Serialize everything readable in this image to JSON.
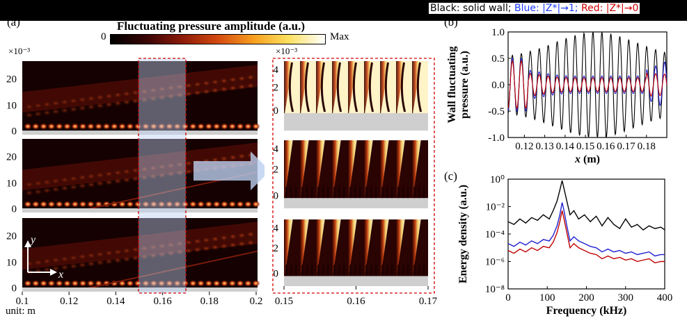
{
  "figure": {
    "panel_a": "(a)",
    "panel_b": "(b)",
    "panel_c": "(c)",
    "colorbar": {
      "title": "Fluctuating pressure amplitude (a.u.)",
      "min_label": "0",
      "max_label": "Max",
      "colors": [
        "#000000",
        "#3a0505",
        "#8b1a0a",
        "#d44a10",
        "#f8a020",
        "#fbe060",
        "#ffffff"
      ]
    },
    "legend_note": {
      "black": "Black: solid wall;",
      "blue": "Blue: |Z*|→1;",
      "red": "Red: |Z*|→0"
    },
    "left_fields": {
      "scale_label": "×10⁻³",
      "y_ticks": [
        "20",
        "10",
        "0"
      ],
      "x_ticks": [
        "0.1",
        "0.12",
        "0.14",
        "0.16",
        "0.18",
        "0.2"
      ],
      "unit": "unit: m",
      "axis_y": "y",
      "axis_x": "x"
    },
    "zoom_fields": {
      "scale_label": "×10⁻³",
      "y_ticks": [
        "4",
        "2",
        "0"
      ],
      "x_ticks": [
        "0.15",
        "0.16",
        "0.17"
      ]
    }
  },
  "chart_data": [
    {
      "type": "line",
      "panel": "(b)",
      "xlabel": "x (m)",
      "ylabel": "Wall fluctuating pressure (a.u.)",
      "xlim": [
        0.112,
        0.19
      ],
      "ylim": [
        -1.0,
        1.0
      ],
      "x_ticks": [
        0.12,
        0.13,
        0.14,
        0.15,
        0.16,
        0.17,
        0.18
      ],
      "y_ticks": [
        1.0,
        0.5,
        0.0,
        -0.5,
        -1.0
      ],
      "x_tick_labels": [
        "0.12",
        "0.13",
        "0.14",
        "0.15",
        "0.16",
        "0.17",
        "0.18"
      ],
      "y_tick_labels": [
        "1.0",
        "0.5",
        "0.0",
        "-0.5",
        "-1.0"
      ],
      "series": [
        {
          "color": "#000000",
          "wavelength": 0.0044,
          "amplitude_peak": 1.0,
          "amplitude_start": 0.5,
          "amplitude_end": 0.75,
          "peak_x": 0.155
        },
        {
          "color": "#2020d0",
          "wavelength": 0.0044,
          "amplitude_peak": 0.28,
          "amplitude_start": 0.5,
          "amplitude_end": 0.45,
          "peak_x": 0.12
        },
        {
          "color": "#c00000",
          "wavelength": 0.0044,
          "amplitude_peak": 0.22,
          "amplitude_start": 0.45,
          "amplitude_end": 0.2,
          "peak_x": 0.12
        }
      ]
    },
    {
      "type": "line",
      "panel": "(c)",
      "xlabel": "Frequency (kHz)",
      "ylabel": "Energy density (a.u.)",
      "xlim": [
        0,
        400
      ],
      "ylim_log10": [
        -8,
        0
      ],
      "x_ticks": [
        0,
        100,
        200,
        300,
        400
      ],
      "x_tick_labels": [
        "0",
        "100",
        "200",
        "300",
        "400"
      ],
      "y_ticks_log10": [
        0,
        -2,
        -4,
        -6,
        -8
      ],
      "y_tick_labels": [
        "10⁰",
        "10⁻²",
        "10⁻⁴",
        "10⁻⁶",
        "10⁻⁸"
      ],
      "series": [
        {
          "color": "#000000",
          "x": [
            0,
            15,
            30,
            45,
            60,
            75,
            90,
            105,
            115,
            125,
            132,
            138,
            142,
            150,
            158,
            168,
            180,
            195,
            210,
            225,
            240,
            255,
            270,
            285,
            300,
            315,
            330,
            345,
            360,
            375,
            390,
            400
          ],
          "y": [
            -3.1,
            -3.3,
            -2.9,
            -3.2,
            -2.8,
            -3.0,
            -2.6,
            -2.9,
            -2.3,
            -1.6,
            -0.8,
            -0.1,
            -0.6,
            -1.6,
            -2.6,
            -2.3,
            -2.9,
            -2.6,
            -3.1,
            -2.7,
            -3.4,
            -2.8,
            -3.3,
            -3.6,
            -2.9,
            -3.5,
            -3.3,
            -3.7,
            -3.4,
            -3.6,
            -3.5,
            -3.7
          ]
        },
        {
          "color": "#2020d0",
          "x": [
            0,
            15,
            30,
            45,
            60,
            75,
            90,
            105,
            115,
            125,
            132,
            138,
            142,
            150,
            158,
            168,
            180,
            195,
            210,
            225,
            240,
            255,
            270,
            285,
            300,
            315,
            330,
            345,
            360,
            375,
            390,
            400
          ],
          "y": [
            -4.7,
            -4.9,
            -4.6,
            -4.8,
            -4.5,
            -4.7,
            -4.4,
            -4.5,
            -4.1,
            -3.4,
            -2.6,
            -1.7,
            -2.2,
            -3.4,
            -4.5,
            -4.2,
            -4.5,
            -4.7,
            -4.9,
            -5.0,
            -5.3,
            -5.1,
            -5.3,
            -5.2,
            -5.4,
            -5.3,
            -5.5,
            -5.4,
            -5.3,
            -5.6,
            -5.5,
            -5.5
          ]
        },
        {
          "color": "#c00000",
          "x": [
            0,
            15,
            30,
            45,
            60,
            75,
            90,
            105,
            115,
            125,
            132,
            138,
            142,
            150,
            158,
            168,
            180,
            195,
            210,
            225,
            240,
            255,
            270,
            285,
            300,
            315,
            330,
            345,
            360,
            375,
            390,
            400
          ],
          "y": [
            -5.2,
            -5.4,
            -5.1,
            -5.3,
            -5.0,
            -5.2,
            -4.9,
            -5.0,
            -4.6,
            -3.9,
            -3.1,
            -2.3,
            -2.8,
            -3.9,
            -5.0,
            -4.7,
            -5.0,
            -5.2,
            -5.4,
            -5.5,
            -5.8,
            -5.6,
            -5.8,
            -5.7,
            -5.9,
            -5.8,
            -6.0,
            -5.9,
            -5.8,
            -6.1,
            -6.0,
            -6.0
          ]
        }
      ]
    }
  ]
}
